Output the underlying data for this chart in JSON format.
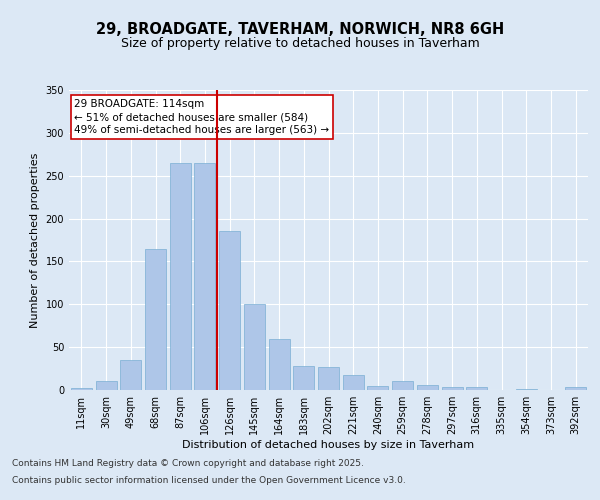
{
  "title_line1": "29, BROADGATE, TAVERHAM, NORWICH, NR8 6GH",
  "title_line2": "Size of property relative to detached houses in Taverham",
  "xlabel": "Distribution of detached houses by size in Taverham",
  "ylabel": "Number of detached properties",
  "categories": [
    "11sqm",
    "30sqm",
    "49sqm",
    "68sqm",
    "87sqm",
    "106sqm",
    "126sqm",
    "145sqm",
    "164sqm",
    "183sqm",
    "202sqm",
    "221sqm",
    "240sqm",
    "259sqm",
    "278sqm",
    "297sqm",
    "316sqm",
    "335sqm",
    "354sqm",
    "373sqm",
    "392sqm"
  ],
  "values": [
    2,
    10,
    35,
    165,
    265,
    265,
    185,
    100,
    60,
    28,
    27,
    18,
    5,
    10,
    6,
    4,
    4,
    0,
    1,
    0,
    3
  ],
  "bar_color": "#aec6e8",
  "bar_edge_color": "#7aafd4",
  "vline_x": 5.5,
  "vline_color": "#cc0000",
  "annotation_text": "29 BROADGATE: 114sqm\n← 51% of detached houses are smaller (584)\n49% of semi-detached houses are larger (563) →",
  "annotation_box_color": "#ffffff",
  "annotation_box_edge": "#cc0000",
  "bg_color": "#dce8f5",
  "plot_bg_color": "#dce8f5",
  "ylim": [
    0,
    350
  ],
  "yticks": [
    0,
    50,
    100,
    150,
    200,
    250,
    300,
    350
  ],
  "footer_line1": "Contains HM Land Registry data © Crown copyright and database right 2025.",
  "footer_line2": "Contains public sector information licensed under the Open Government Licence v3.0.",
  "title_fontsize": 10.5,
  "subtitle_fontsize": 9,
  "axis_label_fontsize": 8,
  "tick_fontsize": 7,
  "annotation_fontsize": 7.5,
  "footer_fontsize": 6.5
}
